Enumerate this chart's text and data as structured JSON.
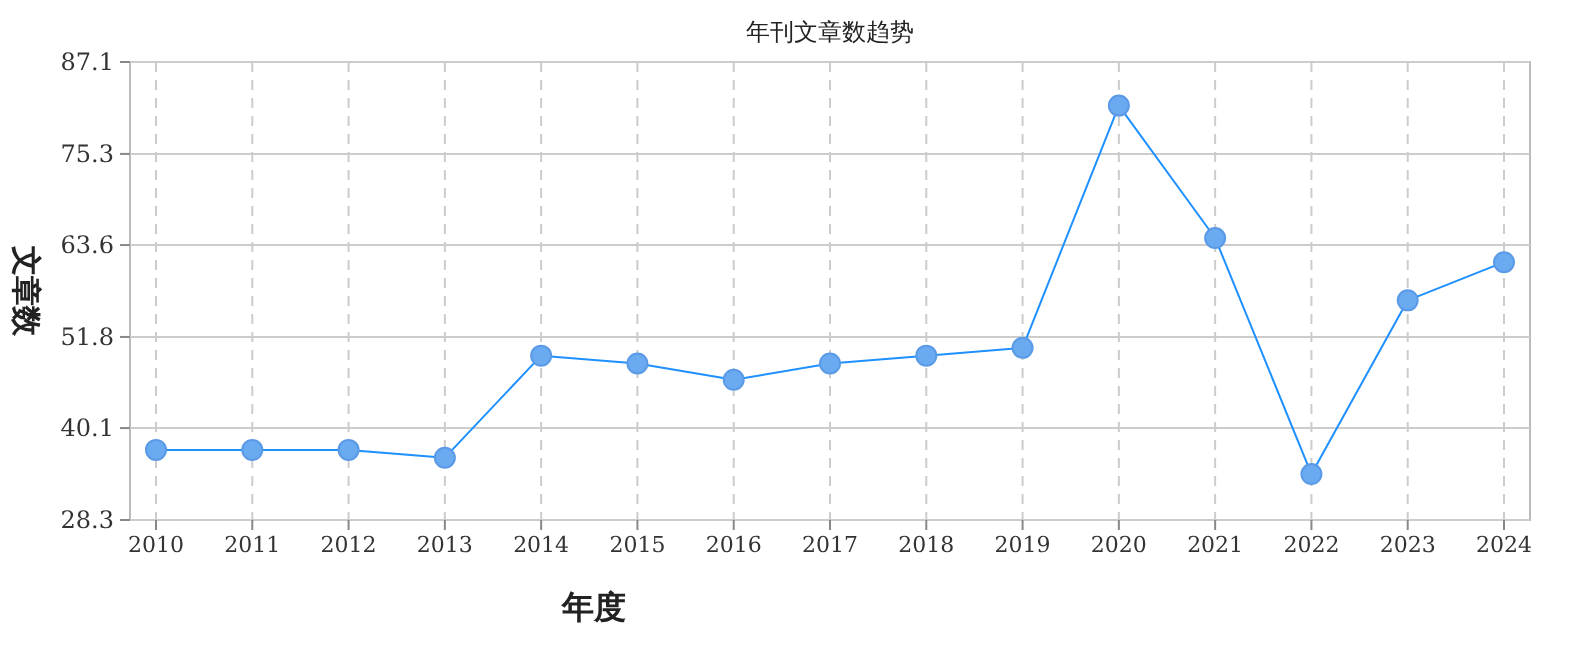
{
  "chart_data": {
    "type": "line",
    "title": "年刊文章数趋势",
    "xlabel": "年度",
    "ylabel": "文章数",
    "categories": [
      "2010",
      "2011",
      "2012",
      "2013",
      "2014",
      "2015",
      "2016",
      "2017",
      "2018",
      "2019",
      "2020",
      "2021",
      "2022",
      "2023",
      "2024"
    ],
    "series": [
      {
        "color": "#1e90ff",
        "values": [
          37.3,
          37.3,
          37.3,
          36.3,
          49.4,
          48.4,
          46.3,
          48.4,
          49.4,
          50.4,
          81.5,
          64.5,
          34.2,
          56.5,
          61.4
        ]
      }
    ],
    "ylim": [
      28.3,
      87.1
    ],
    "yticks": [
      28.3,
      40.1,
      51.8,
      63.6,
      75.3,
      87.1
    ],
    "grid": true,
    "marker": "circle"
  }
}
